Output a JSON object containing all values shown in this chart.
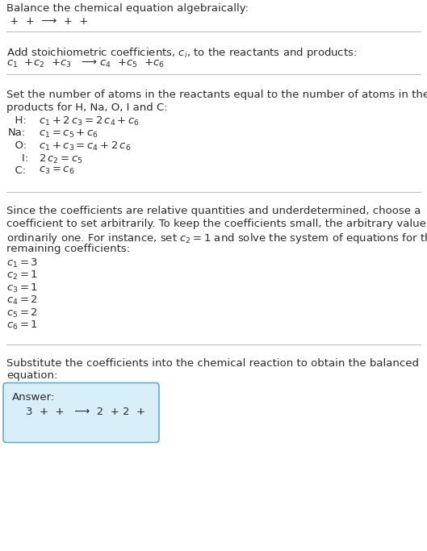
{
  "bg_color": "#ffffff",
  "text_color": "#2a2a2a",
  "line_color": "#bbbbbb",
  "answer_box_facecolor": "#d8eef8",
  "answer_box_edgecolor": "#6aabcc",
  "s1_title": "Balance the chemical equation algebraically:",
  "s1_eq": " +  +  ⟶  +  + ",
  "s2_title": "Add stoichiometric coefficients, $c_i$, to the reactants and products:",
  "s2_eq": "$c_1$  +$c_2$  +$c_3$   ⟶ $c_4$  +$c_5$  +$c_6$",
  "s3_title_l1": "Set the number of atoms in the reactants equal to the number of atoms in the",
  "s3_title_l2": "products for H, Na, O, I and C:",
  "s3_eqs": [
    [
      "  H:",
      "$c_1 + 2\\,c_3 = 2\\,c_4 + c_6$"
    ],
    [
      "Na:",
      "$c_1 = c_5 + c_6$"
    ],
    [
      "  O:",
      "$c_1 + c_3 = c_4 + 2\\,c_6$"
    ],
    [
      "    I:",
      "$2\\,c_2 = c_5$"
    ],
    [
      "  C:",
      "$c_3 = c_6$"
    ]
  ],
  "s4_text": [
    "Since the coefficients are relative quantities and underdetermined, choose a",
    "coefficient to set arbitrarily. To keep the coefficients small, the arbitrary value is",
    "ordinarily one. For instance, set $c_2 = 1$ and solve the system of equations for the",
    "remaining coefficients:"
  ],
  "s4_coefs": [
    "$c_1 = 3$",
    "$c_2 = 1$",
    "$c_3 = 1$",
    "$c_4 = 2$",
    "$c_5 = 2$",
    "$c_6 = 1$"
  ],
  "s5_text": [
    "Substitute the coefficients into the chemical reaction to obtain the balanced",
    "equation:"
  ],
  "answer_label": "Answer:",
  "answer_eq": "    3  +  +   ⟶  2  + 2  + "
}
